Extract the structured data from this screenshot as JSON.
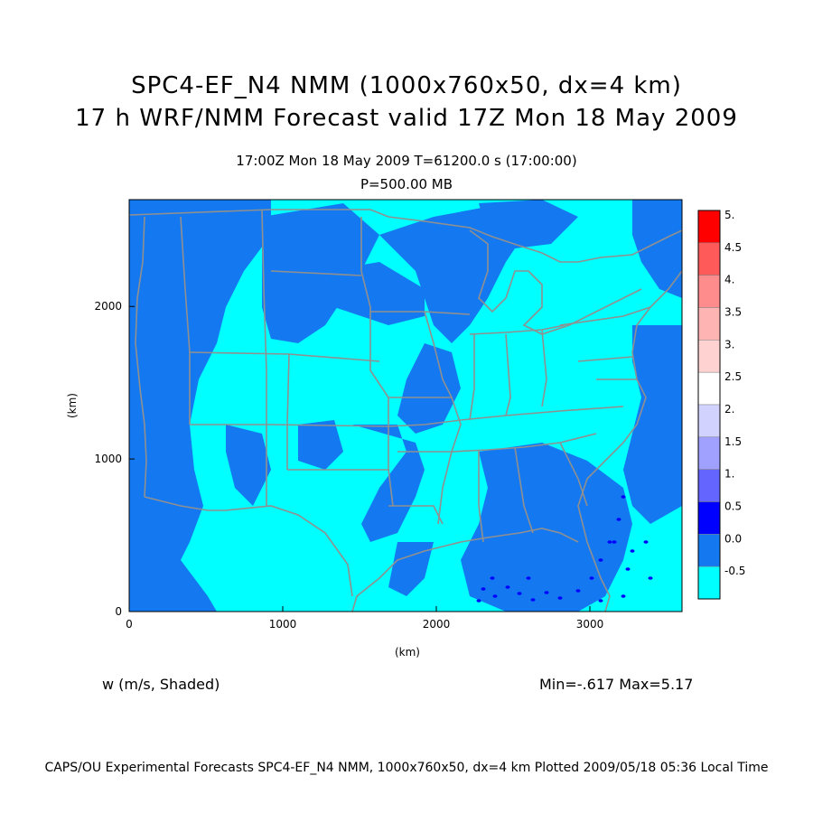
{
  "title": {
    "line1": "SPC4-EF_N4 NMM (1000x760x50, dx=4 km)",
    "line2": "17 h WRF/NMM Forecast valid 17Z Mon 18 May 2009",
    "time": "17:00Z Mon 18 May 2009     T=61200.0 s (17:00:00)",
    "level": "P=500.00 MB"
  },
  "axes": {
    "xlabel": "(km)",
    "ylabel": "(km)",
    "xticks": [
      "0",
      "1000",
      "2000",
      "3000"
    ],
    "yticks": [
      "0",
      "1000",
      "2000"
    ],
    "xrange": [
      0,
      3600
    ],
    "yrange": [
      0,
      2700
    ]
  },
  "colorbar": {
    "labels": [
      "5.",
      "4.5",
      "4.",
      "3.5",
      "3.",
      "2.5",
      "2.",
      "1.5",
      "1.",
      "0.5",
      "0.0",
      "-0.5"
    ],
    "colors": [
      "#ff0000",
      "#ff5a5a",
      "#ff8c8c",
      "#ffb4b4",
      "#ffd2d2",
      "#ffffff",
      "#d2d2ff",
      "#a0a0ff",
      "#6464ff",
      "#0000ff",
      "#1478f0",
      "#00ffff"
    ]
  },
  "field": {
    "variable_label": "w (m/s, Shaded)",
    "minmax": "Min=-.617 Max=5.17",
    "background_color": "#00ffff",
    "updraft_color": "#1478f0",
    "boundary_color": "#909090"
  },
  "footer": "CAPS/OU Experimental Forecasts  SPC4-EF_N4 NMM, 1000x760x50, dx=4 km  Plotted 2009/05/18 05:36 Local Time"
}
